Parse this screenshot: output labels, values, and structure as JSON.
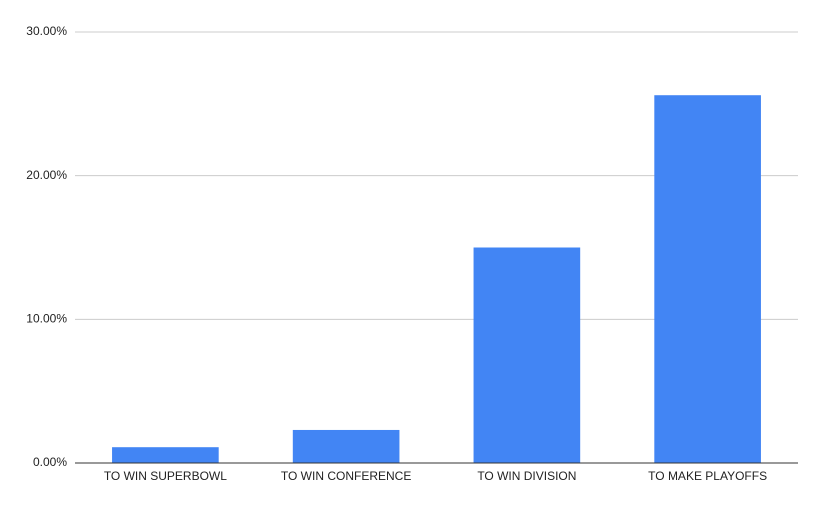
{
  "chart_data": {
    "type": "bar",
    "categories": [
      "TO WIN SUPERBOWL",
      "TO WIN CONFERENCE",
      "TO WIN DIVISION",
      "TO MAKE PLAYOFFS"
    ],
    "values": [
      1.1,
      2.3,
      15.0,
      25.6
    ],
    "color": "#4285f4",
    "ylim": [
      0,
      30
    ],
    "yticks": [
      {
        "value": 0,
        "label": "0.00%"
      },
      {
        "value": 10,
        "label": "10.00%"
      },
      {
        "value": 20,
        "label": "20.00%"
      },
      {
        "value": 30,
        "label": "30.00%"
      }
    ],
    "grid": true
  }
}
